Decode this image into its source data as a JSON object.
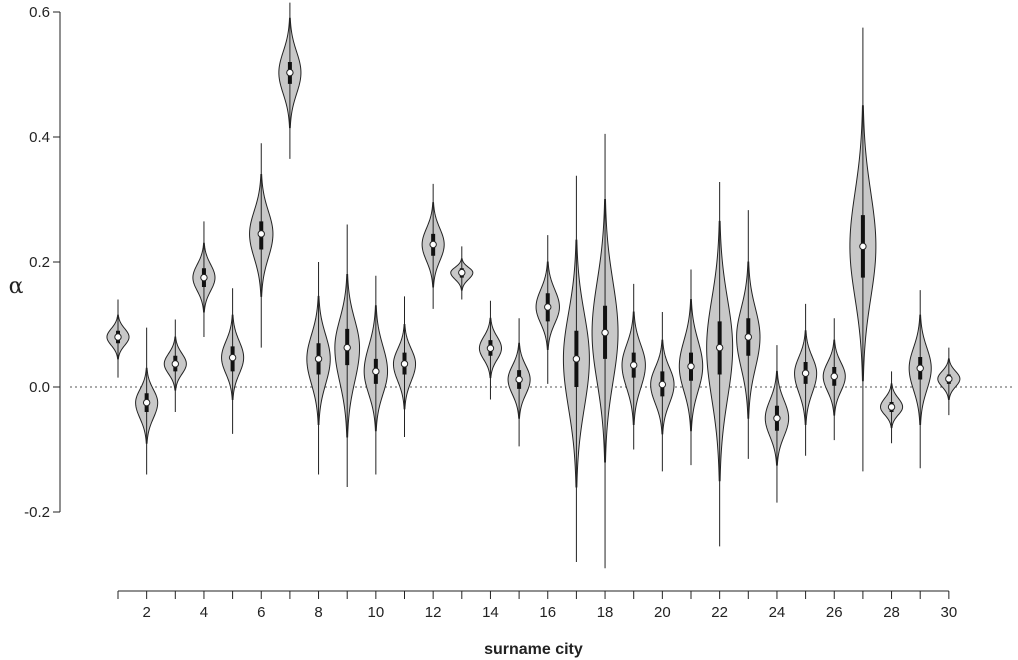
{
  "chart_data": {
    "type": "violin",
    "xlabel": "surname city",
    "ylabel": "α",
    "ylim": [
      -0.22,
      0.62
    ],
    "xlim": [
      0.5,
      30.5
    ],
    "y_ticks": [
      -0.2,
      0.0,
      0.2,
      0.4,
      0.6
    ],
    "y_tick_labels": [
      "-0.2",
      "0.0",
      "0.2",
      "0.4",
      "0.6"
    ],
    "x_tick_labels": [
      "2",
      "4",
      "6",
      "8",
      "10",
      "12",
      "14",
      "16",
      "18",
      "20",
      "22",
      "24",
      "26",
      "28",
      "30"
    ],
    "x_tick_values": [
      2,
      4,
      6,
      8,
      10,
      12,
      14,
      16,
      18,
      20,
      22,
      24,
      26,
      28,
      30
    ],
    "x_minor_ticks": [
      1,
      3,
      5,
      7,
      9,
      11,
      13,
      15,
      17,
      19,
      21,
      23,
      25,
      27,
      29
    ],
    "reference_line": 0.0,
    "violins": [
      {
        "x": 1,
        "median": 0.08,
        "q1": 0.07,
        "q3": 0.09,
        "min": 0.015,
        "max": 0.14,
        "vmin": 0.045,
        "vmax": 0.115,
        "width": 0.85
      },
      {
        "x": 2,
        "median": -0.025,
        "q1": -0.04,
        "q3": -0.01,
        "min": -0.14,
        "max": 0.095,
        "vmin": -0.09,
        "vmax": 0.03,
        "width": 0.85
      },
      {
        "x": 3,
        "median": 0.037,
        "q1": 0.025,
        "q3": 0.05,
        "min": -0.04,
        "max": 0.108,
        "vmin": -0.005,
        "vmax": 0.08,
        "width": 0.85
      },
      {
        "x": 4,
        "median": 0.175,
        "q1": 0.16,
        "q3": 0.19,
        "min": 0.08,
        "max": 0.265,
        "vmin": 0.12,
        "vmax": 0.23,
        "width": 0.85
      },
      {
        "x": 5,
        "median": 0.047,
        "q1": 0.025,
        "q3": 0.065,
        "min": -0.075,
        "max": 0.158,
        "vmin": -0.02,
        "vmax": 0.115,
        "width": 0.85
      },
      {
        "x": 6,
        "median": 0.245,
        "q1": 0.22,
        "q3": 0.265,
        "min": 0.063,
        "max": 0.39,
        "vmin": 0.145,
        "vmax": 0.34,
        "width": 0.9
      },
      {
        "x": 7,
        "median": 0.503,
        "q1": 0.485,
        "q3": 0.52,
        "min": 0.365,
        "max": 0.615,
        "vmin": 0.415,
        "vmax": 0.59,
        "width": 0.85
      },
      {
        "x": 8,
        "median": 0.045,
        "q1": 0.02,
        "q3": 0.07,
        "min": -0.14,
        "max": 0.2,
        "vmin": -0.06,
        "vmax": 0.145,
        "width": 0.9
      },
      {
        "x": 9,
        "median": 0.063,
        "q1": 0.035,
        "q3": 0.093,
        "min": -0.16,
        "max": 0.26,
        "vmin": -0.08,
        "vmax": 0.18,
        "width": 0.95
      },
      {
        "x": 10,
        "median": 0.025,
        "q1": 0.005,
        "q3": 0.045,
        "min": -0.14,
        "max": 0.178,
        "vmin": -0.07,
        "vmax": 0.13,
        "width": 0.9
      },
      {
        "x": 11,
        "median": 0.037,
        "q1": 0.02,
        "q3": 0.055,
        "min": -0.08,
        "max": 0.145,
        "vmin": -0.035,
        "vmax": 0.1,
        "width": 0.85
      },
      {
        "x": 12,
        "median": 0.228,
        "q1": 0.21,
        "q3": 0.245,
        "min": 0.125,
        "max": 0.325,
        "vmin": 0.16,
        "vmax": 0.295,
        "width": 0.85
      },
      {
        "x": 13,
        "median": 0.183,
        "q1": 0.175,
        "q3": 0.19,
        "min": 0.14,
        "max": 0.225,
        "vmin": 0.155,
        "vmax": 0.205,
        "width": 0.85
      },
      {
        "x": 14,
        "median": 0.062,
        "q1": 0.05,
        "q3": 0.075,
        "min": -0.02,
        "max": 0.138,
        "vmin": 0.015,
        "vmax": 0.11,
        "width": 0.85
      },
      {
        "x": 15,
        "median": 0.012,
        "q1": -0.003,
        "q3": 0.027,
        "min": -0.095,
        "max": 0.11,
        "vmin": -0.05,
        "vmax": 0.07,
        "width": 0.85
      },
      {
        "x": 16,
        "median": 0.128,
        "q1": 0.105,
        "q3": 0.15,
        "min": 0.005,
        "max": 0.243,
        "vmin": 0.06,
        "vmax": 0.2,
        "width": 0.9
      },
      {
        "x": 17,
        "median": 0.045,
        "q1": 0.0,
        "q3": 0.09,
        "min": -0.28,
        "max": 0.338,
        "vmin": -0.16,
        "vmax": 0.235,
        "width": 1.0
      },
      {
        "x": 18,
        "median": 0.087,
        "q1": 0.045,
        "q3": 0.13,
        "min": -0.29,
        "max": 0.405,
        "vmin": -0.12,
        "vmax": 0.3,
        "width": 1.0
      },
      {
        "x": 19,
        "median": 0.035,
        "q1": 0.015,
        "q3": 0.055,
        "min": -0.1,
        "max": 0.165,
        "vmin": -0.06,
        "vmax": 0.12,
        "width": 0.9
      },
      {
        "x": 20,
        "median": 0.004,
        "q1": -0.015,
        "q3": 0.025,
        "min": -0.135,
        "max": 0.12,
        "vmin": -0.075,
        "vmax": 0.075,
        "width": 0.9
      },
      {
        "x": 21,
        "median": 0.033,
        "q1": 0.01,
        "q3": 0.055,
        "min": -0.125,
        "max": 0.188,
        "vmin": -0.07,
        "vmax": 0.14,
        "width": 0.9
      },
      {
        "x": 22,
        "median": 0.063,
        "q1": 0.02,
        "q3": 0.105,
        "min": -0.255,
        "max": 0.328,
        "vmin": -0.15,
        "vmax": 0.265,
        "width": 1.0
      },
      {
        "x": 23,
        "median": 0.08,
        "q1": 0.05,
        "q3": 0.11,
        "min": -0.115,
        "max": 0.283,
        "vmin": -0.05,
        "vmax": 0.2,
        "width": 0.9
      },
      {
        "x": 24,
        "median": -0.05,
        "q1": -0.07,
        "q3": -0.03,
        "min": -0.185,
        "max": 0.067,
        "vmin": -0.125,
        "vmax": 0.025,
        "width": 0.9
      },
      {
        "x": 25,
        "median": 0.022,
        "q1": 0.005,
        "q3": 0.04,
        "min": -0.11,
        "max": 0.133,
        "vmin": -0.06,
        "vmax": 0.09,
        "width": 0.85
      },
      {
        "x": 26,
        "median": 0.017,
        "q1": 0.002,
        "q3": 0.032,
        "min": -0.085,
        "max": 0.11,
        "vmin": -0.045,
        "vmax": 0.075,
        "width": 0.85
      },
      {
        "x": 27,
        "median": 0.225,
        "q1": 0.175,
        "q3": 0.275,
        "min": -0.135,
        "max": 0.575,
        "vmin": 0.01,
        "vmax": 0.45,
        "width": 1.0
      },
      {
        "x": 28,
        "median": -0.032,
        "q1": -0.04,
        "q3": -0.024,
        "min": -0.09,
        "max": 0.025,
        "vmin": -0.065,
        "vmax": 0.005,
        "width": 0.85
      },
      {
        "x": 29,
        "median": 0.03,
        "q1": 0.012,
        "q3": 0.048,
        "min": -0.13,
        "max": 0.155,
        "vmin": -0.06,
        "vmax": 0.115,
        "width": 0.85
      },
      {
        "x": 30,
        "median": 0.013,
        "q1": 0.005,
        "q3": 0.02,
        "min": -0.045,
        "max": 0.063,
        "vmin": -0.02,
        "vmax": 0.045,
        "width": 0.85
      }
    ]
  }
}
